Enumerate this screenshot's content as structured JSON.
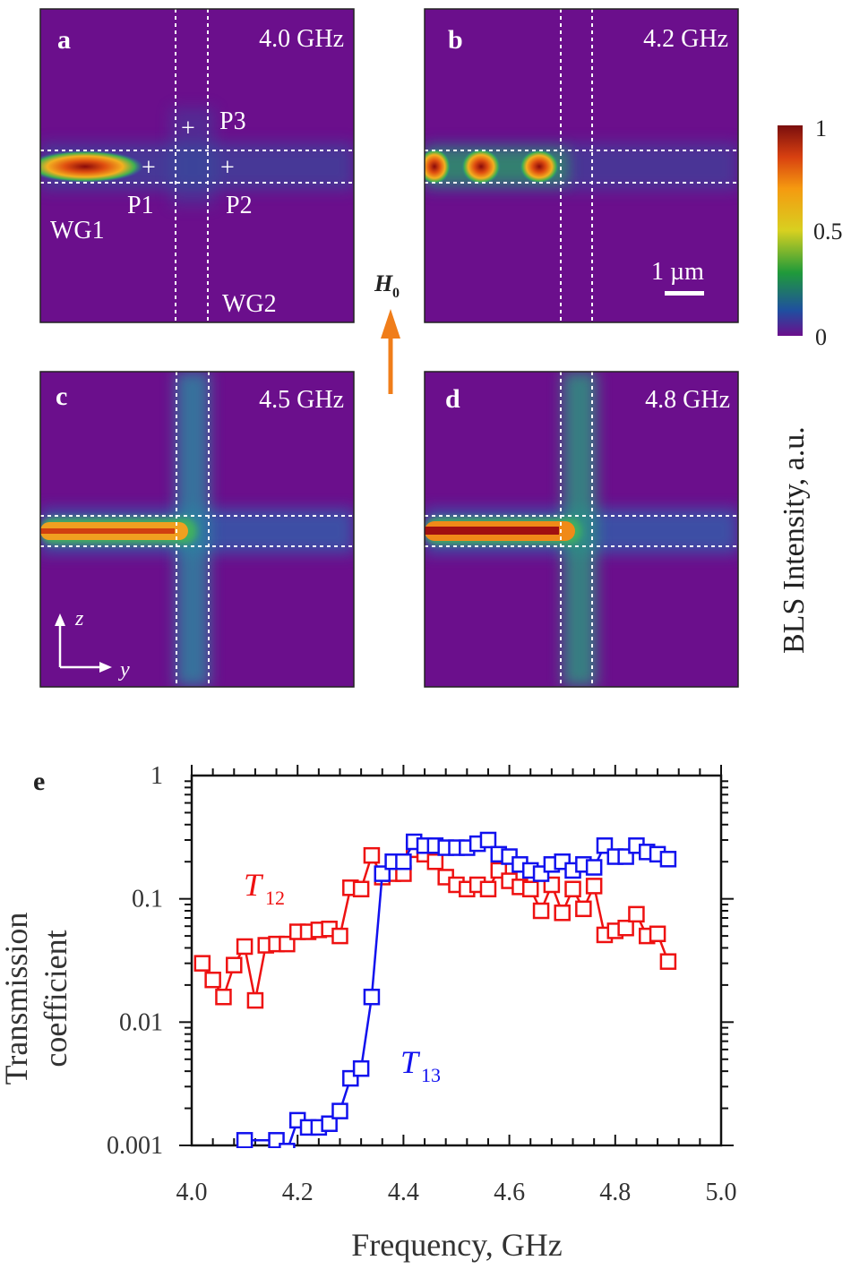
{
  "panels": [
    {
      "letter": "a",
      "freq": "4.0 GHz"
    },
    {
      "letter": "b",
      "freq": "4.2 GHz"
    },
    {
      "letter": "c",
      "freq": "4.5 GHz"
    },
    {
      "letter": "d",
      "freq": "4.8 GHz"
    }
  ],
  "annotations": {
    "p1": "P1",
    "p2": "P2",
    "p3": "P3",
    "wg1": "WG1",
    "wg2": "WG2",
    "plus": "+",
    "scale": "1 µm",
    "field": "H",
    "field_sub": "0",
    "axis_z": "z",
    "axis_y": "y"
  },
  "colorbar": {
    "label": "BLS Intensity, a.u.",
    "ticks": [
      "1",
      "0.5",
      "0"
    ]
  },
  "colors": {
    "t12": "#ee1111",
    "t13": "#1111ee",
    "arrow": "#f07d1a",
    "bg": "#6b0f8c"
  },
  "chart_data": {
    "type": "line",
    "panel_letter": "e",
    "xlabel": "Frequency, GHz",
    "ylabel_lines": [
      "Transmission",
      "coefficient"
    ],
    "xlim": [
      4.0,
      5.0
    ],
    "ylim": [
      0.001,
      1
    ],
    "yscale": "log",
    "xticks": [
      "4.0",
      "4.2",
      "4.4",
      "4.6",
      "4.8",
      "5.0"
    ],
    "yticks": [
      "0.001",
      "0.01",
      "0.1",
      "1"
    ],
    "series": [
      {
        "name": "T12",
        "label": "T",
        "sub": "12",
        "color": "#ee1111",
        "x": [
          4.02,
          4.04,
          4.06,
          4.08,
          4.1,
          4.12,
          4.14,
          4.16,
          4.18,
          4.2,
          4.22,
          4.24,
          4.26,
          4.28,
          4.3,
          4.32,
          4.34,
          4.36,
          4.38,
          4.4,
          4.42,
          4.44,
          4.46,
          4.48,
          4.5,
          4.52,
          4.54,
          4.56,
          4.58,
          4.6,
          4.62,
          4.64,
          4.66,
          4.68,
          4.7,
          4.72,
          4.74,
          4.76,
          4.78,
          4.8,
          4.82,
          4.84,
          4.86,
          4.88,
          4.9
        ],
        "y": [
          0.03,
          0.022,
          0.016,
          0.029,
          0.041,
          0.015,
          0.042,
          0.043,
          0.043,
          0.054,
          0.054,
          0.056,
          0.057,
          0.05,
          0.123,
          0.12,
          0.225,
          0.15,
          0.16,
          0.16,
          0.25,
          0.23,
          0.2,
          0.15,
          0.13,
          0.12,
          0.13,
          0.12,
          0.17,
          0.14,
          0.125,
          0.12,
          0.08,
          0.13,
          0.077,
          0.12,
          0.083,
          0.127,
          0.051,
          0.055,
          0.058,
          0.075,
          0.05,
          0.052,
          0.031
        ]
      },
      {
        "name": "T13",
        "label": "T",
        "sub": "13",
        "color": "#1111ee",
        "x": [
          4.1,
          4.16,
          4.18,
          4.2,
          4.22,
          4.24,
          4.26,
          4.28,
          4.3,
          4.32,
          4.34,
          4.36,
          4.38,
          4.4,
          4.42,
          4.44,
          4.46,
          4.48,
          4.5,
          4.52,
          4.54,
          4.56,
          4.58,
          4.6,
          4.62,
          4.64,
          4.66,
          4.68,
          4.7,
          4.72,
          4.74,
          4.76,
          4.78,
          4.8,
          4.82,
          4.84,
          4.86,
          4.88,
          4.9
        ],
        "y": [
          0.0011,
          0.0011,
          0.0009,
          0.0016,
          0.0014,
          0.0014,
          0.0015,
          0.0019,
          0.0035,
          0.0042,
          0.016,
          0.16,
          0.2,
          0.2,
          0.29,
          0.27,
          0.27,
          0.26,
          0.26,
          0.26,
          0.28,
          0.3,
          0.23,
          0.22,
          0.19,
          0.17,
          0.16,
          0.19,
          0.2,
          0.17,
          0.19,
          0.18,
          0.27,
          0.22,
          0.22,
          0.27,
          0.24,
          0.23,
          0.21
        ]
      }
    ]
  }
}
